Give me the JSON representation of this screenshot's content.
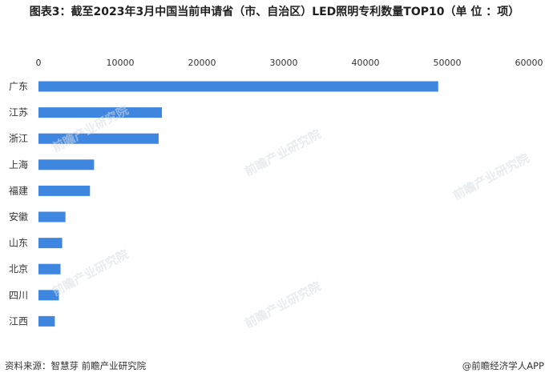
{
  "title": "图表3：截至2023年3月中国当前申请省（市、自治区）LED照明专利数量TOP10（单 位 ：项）",
  "footer": {
    "source": "资料来源：智慧芽 前瞻产业研究院",
    "brand": "@前瞻经济学人APP"
  },
  "watermark": "前瞻产业研究院",
  "colors": {
    "bar": "#3f86e0",
    "grid": "#e6e6e6"
  },
  "chart_data": {
    "type": "bar",
    "orientation": "horizontal",
    "title": "图表3：截至2023年3月中国当前申请省（市、自治区）LED照明专利数量TOP10（单 位 ：项）",
    "categories": [
      "广东",
      "江苏",
      "浙江",
      "上海",
      "福建",
      "安徽",
      "山东",
      "北京",
      "四川",
      "江西"
    ],
    "values": [
      48900,
      15100,
      14700,
      6800,
      6300,
      3300,
      2900,
      2700,
      2500,
      2000
    ],
    "xlim": [
      0,
      60000
    ],
    "xticks": [
      0,
      10000,
      20000,
      30000,
      40000,
      50000,
      60000
    ],
    "axis_position": "top",
    "grid": false,
    "legend": "none"
  }
}
